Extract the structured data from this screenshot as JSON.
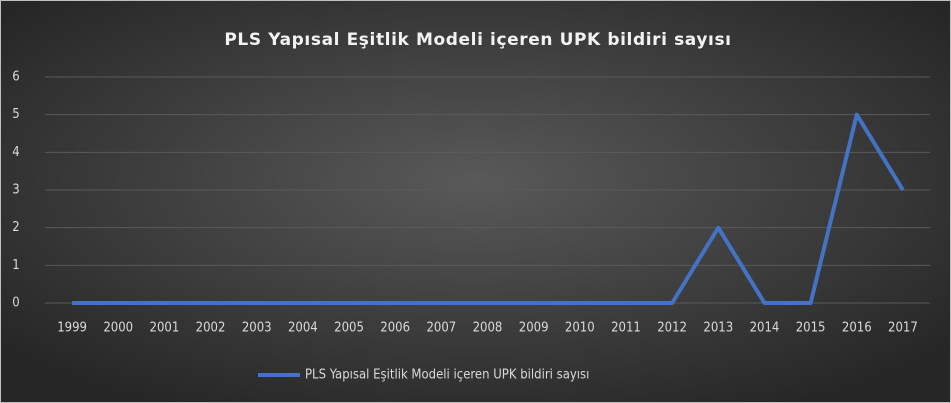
{
  "chart_data": {
    "type": "line",
    "title": "PLS Yapısal Eşitlik Modeli içeren UPK bildiri sayısı",
    "categories": [
      "1999",
      "2000",
      "2001",
      "2002",
      "2003",
      "2004",
      "2005",
      "2006",
      "2007",
      "2008",
      "2009",
      "2010",
      "2011",
      "2012",
      "2013",
      "2014",
      "2015",
      "2016",
      "2017"
    ],
    "series": [
      {
        "name": "PLS Yapısal Eşitlik Modeli içeren UPK bildiri sayısı",
        "color": "#4472c4",
        "values": [
          0,
          0,
          0,
          0,
          0,
          0,
          0,
          0,
          0,
          0,
          0,
          0,
          0,
          0,
          2,
          0,
          0,
          5,
          3
        ]
      }
    ],
    "ylim": [
      0,
      6
    ],
    "yticks": [
      0,
      1,
      2,
      3,
      4,
      5,
      6
    ],
    "grid": true,
    "legend": "bottom"
  }
}
